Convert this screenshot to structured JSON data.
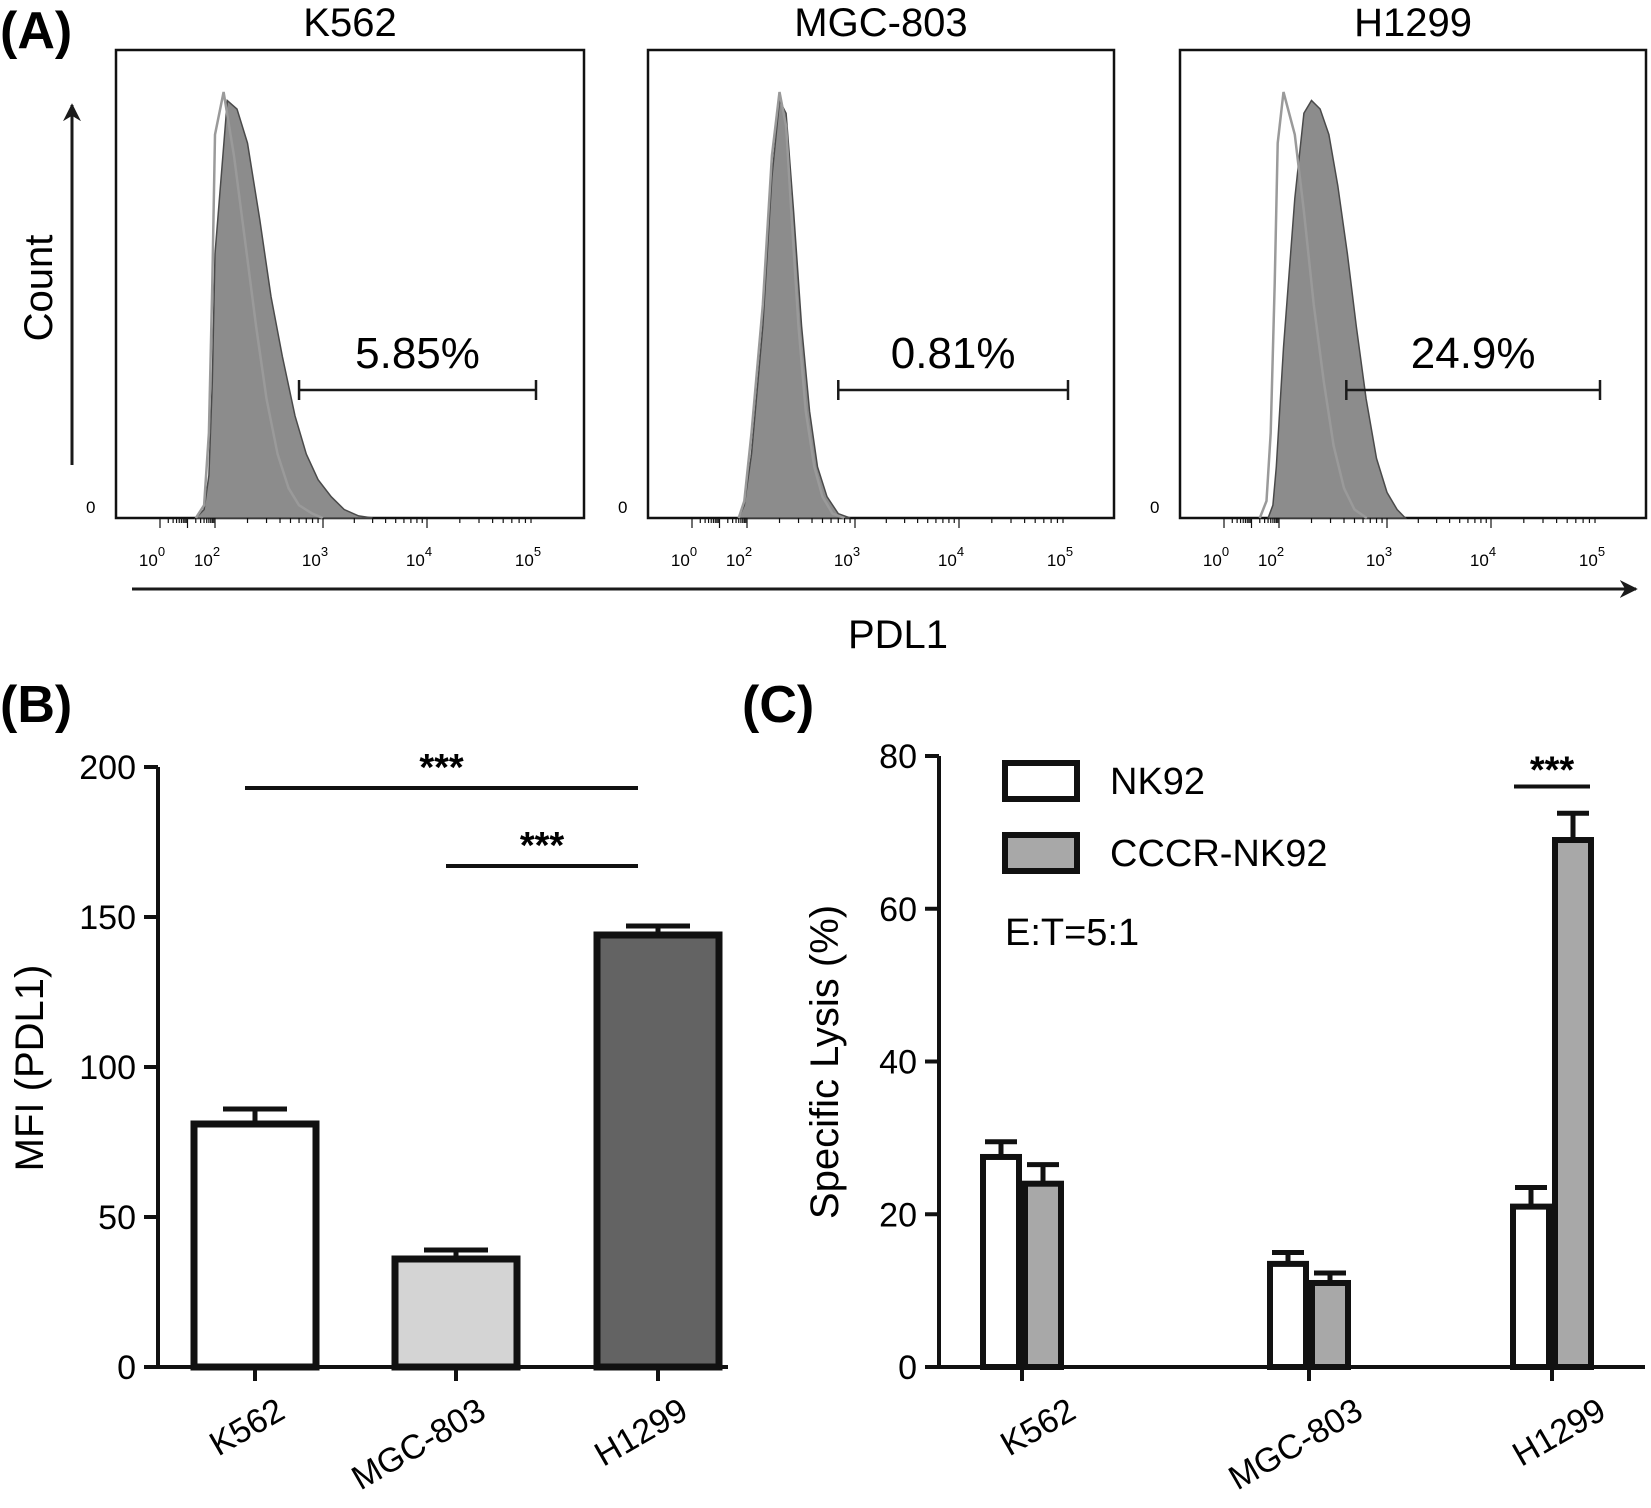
{
  "panel_labels": {
    "a": "(A)",
    "b": "(B)",
    "c": "(C)"
  },
  "histogram_axes": {
    "xlabel": "PDL1",
    "ylabel": "Count",
    "zero_label": "0"
  },
  "colors": {
    "filled": "#8c8c8c",
    "filled_edge": "#4a4a4a",
    "outline": "#9a9a9a",
    "bar_white": "#ffffff",
    "bar_light": "#d4d4d4",
    "bar_dark": "#636363",
    "bar_c_gray": "#a8a8a8",
    "stroke": "#111111"
  },
  "chart_data": [
    {
      "type": "area",
      "panel": "A",
      "title": "K562",
      "x_scale": "log",
      "x_ticks": [
        1,
        100,
        1000,
        10000,
        100000
      ],
      "gate_label": "5.85%",
      "gate_range": [
        600,
        100000
      ],
      "series": [
        {
          "name": "",
          "style": "filled",
          "x": [
            20,
            40,
            60,
            80,
            100,
            130,
            160,
            200,
            260,
            330,
            420,
            550,
            700,
            900,
            1200,
            1600,
            2200,
            3000
          ],
          "y": [
            0,
            0.02,
            0.1,
            0.32,
            0.62,
            0.98,
            0.96,
            0.88,
            0.7,
            0.52,
            0.38,
            0.24,
            0.15,
            0.09,
            0.05,
            0.02,
            0.005,
            0
          ]
        },
        {
          "name": "",
          "style": "outline",
          "x": [
            20,
            40,
            60,
            80,
            100,
            120,
            150,
            190,
            240,
            300,
            380,
            480,
            600,
            800,
            1000
          ],
          "y": [
            0,
            0.03,
            0.2,
            0.55,
            0.9,
            1.0,
            0.85,
            0.65,
            0.45,
            0.28,
            0.15,
            0.07,
            0.03,
            0.01,
            0
          ]
        }
      ]
    },
    {
      "type": "area",
      "panel": "A",
      "title": "MGC-803",
      "x_scale": "log",
      "x_ticks": [
        1,
        100,
        1000,
        10000,
        100000
      ],
      "gate_label": "0.81%",
      "gate_range": [
        700,
        100000
      ],
      "series": [
        {
          "name": "",
          "style": "filled",
          "x": [
            50,
            80,
            110,
            140,
            170,
            200,
            230,
            270,
            320,
            380,
            450,
            550,
            700,
            900
          ],
          "y": [
            0,
            0.03,
            0.15,
            0.45,
            0.8,
            0.98,
            0.95,
            0.72,
            0.45,
            0.25,
            0.12,
            0.05,
            0.01,
            0
          ]
        },
        {
          "name": "",
          "style": "outline",
          "x": [
            50,
            80,
            110,
            140,
            170,
            200,
            230,
            260,
            300,
            350,
            420,
            500,
            620,
            800
          ],
          "y": [
            0,
            0.04,
            0.2,
            0.5,
            0.85,
            1.0,
            0.92,
            0.7,
            0.45,
            0.25,
            0.12,
            0.05,
            0.01,
            0
          ]
        }
      ]
    },
    {
      "type": "area",
      "panel": "A",
      "title": "H1299",
      "x_scale": "log",
      "x_ticks": [
        1,
        100,
        1000,
        10000,
        100000
      ],
      "gate_label": "24.9%",
      "gate_range": [
        420,
        100000
      ],
      "series": [
        {
          "name": "",
          "style": "filled",
          "x": [
            40,
            60,
            80,
            110,
            140,
            170,
            200,
            240,
            290,
            350,
            430,
            520,
            640,
            800,
            1000,
            1250,
            1500
          ],
          "y": [
            0,
            0.03,
            0.12,
            0.4,
            0.75,
            0.95,
            0.98,
            0.96,
            0.9,
            0.78,
            0.62,
            0.45,
            0.28,
            0.14,
            0.06,
            0.02,
            0
          ]
        },
        {
          "name": "",
          "style": "outline",
          "x": [
            20,
            35,
            50,
            70,
            90,
            110,
            140,
            170,
            210,
            260,
            320,
            400,
            500,
            650
          ],
          "y": [
            0,
            0.04,
            0.2,
            0.55,
            0.88,
            1.0,
            0.9,
            0.72,
            0.5,
            0.32,
            0.17,
            0.07,
            0.02,
            0
          ]
        }
      ]
    },
    {
      "type": "bar",
      "panel": "B",
      "title": "",
      "xlabel": "",
      "ylabel": "MFI (PDL1)",
      "ylim": [
        0,
        200
      ],
      "yticks": [
        0,
        50,
        100,
        150,
        200
      ],
      "categories": [
        "K562",
        "MGC-803",
        "H1299"
      ],
      "values": [
        81,
        36,
        144
      ],
      "errors": [
        5,
        3,
        3
      ],
      "significance": [
        {
          "from": 0,
          "to": 2,
          "label": "***",
          "y": 193
        },
        {
          "from": 1,
          "to": 2,
          "label": "***",
          "y": 167
        }
      ]
    },
    {
      "type": "bar",
      "panel": "C",
      "title": "",
      "xlabel": "",
      "ylabel": "Specific Lysis (%)",
      "ylim": [
        0,
        80
      ],
      "yticks": [
        0,
        20,
        40,
        60,
        80
      ],
      "categories": [
        "K562",
        "MGC-803",
        "H1299"
      ],
      "annotation": "E:T=5:1",
      "series": [
        {
          "name": "NK92",
          "values": [
            27.5,
            13.5,
            21
          ],
          "errors": [
            2,
            1.5,
            2.5
          ]
        },
        {
          "name": "CCCR-NK92",
          "values": [
            24,
            11,
            69
          ],
          "errors": [
            2.5,
            1.3,
            3.5
          ]
        }
      ],
      "significance": [
        {
          "category": 2,
          "label": "***",
          "y": 76
        }
      ]
    }
  ]
}
